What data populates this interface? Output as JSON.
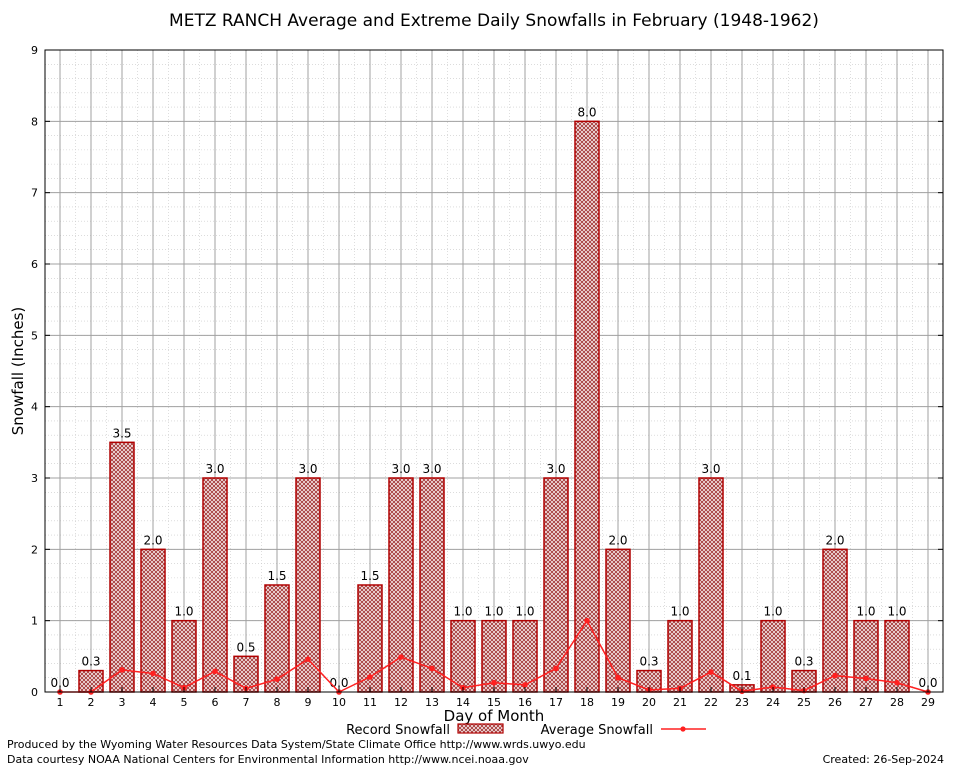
{
  "chart_data": {
    "type": "bar",
    "title": "METZ RANCH Average and Extreme Daily Snowfalls in February (1948-1962)",
    "xlabel": "Day of Month",
    "ylabel": "Snowfall (Inches)",
    "ylim": [
      0,
      9
    ],
    "yticks": [
      0,
      1,
      2,
      3,
      4,
      5,
      6,
      7,
      8,
      9
    ],
    "categories": [
      "1",
      "2",
      "3",
      "4",
      "5",
      "6",
      "7",
      "8",
      "9",
      "10",
      "11",
      "12",
      "13",
      "14",
      "15",
      "16",
      "17",
      "18",
      "19",
      "20",
      "21",
      "22",
      "23",
      "24",
      "25",
      "26",
      "27",
      "28",
      "29"
    ],
    "series": [
      {
        "name": "Record Snowfall",
        "kind": "bar",
        "color": "#b00000",
        "values": [
          0.0,
          0.3,
          3.5,
          2.0,
          1.0,
          3.0,
          0.5,
          1.5,
          3.0,
          0.0,
          1.5,
          3.0,
          3.0,
          1.0,
          1.0,
          1.0,
          3.0,
          8.0,
          2.0,
          0.3,
          1.0,
          3.0,
          0.1,
          1.0,
          0.3,
          2.0,
          1.0,
          1.0,
          0.0
        ],
        "labels": [
          "0.0",
          "0.3",
          "3.5",
          "2.0",
          "1.0",
          "3.0",
          "0.5",
          "1.5",
          "3.0",
          "0.0",
          "1.5",
          "3.0",
          "3.0",
          "1.0",
          "1.0",
          "1.0",
          "3.0",
          "8.0",
          "2.0",
          "0.3",
          "1.0",
          "3.0",
          "0.1",
          "1.0",
          "0.3",
          "2.0",
          "1.0",
          "1.0",
          "0.0"
        ]
      },
      {
        "name": "Average Snowfall",
        "kind": "line",
        "color": "#ff2020",
        "values": [
          0.0,
          0.0,
          0.31,
          0.26,
          0.06,
          0.29,
          0.05,
          0.18,
          0.46,
          0.0,
          0.21,
          0.49,
          0.33,
          0.06,
          0.13,
          0.1,
          0.33,
          1.0,
          0.2,
          0.03,
          0.05,
          0.28,
          0.01,
          0.07,
          0.02,
          0.23,
          0.19,
          0.13,
          0.0
        ]
      }
    ],
    "grid": true,
    "legend_position": "bottom-center"
  },
  "footer": {
    "produced_by": "Produced by the Wyoming Water Resources Data System/State Climate Office http://www.wrds.uwyo.edu",
    "data_courtesy": "Data courtesy NOAA National Centers for Environmental Information http://www.ncei.noaa.gov",
    "created": "Created:  26-Sep-2024"
  }
}
